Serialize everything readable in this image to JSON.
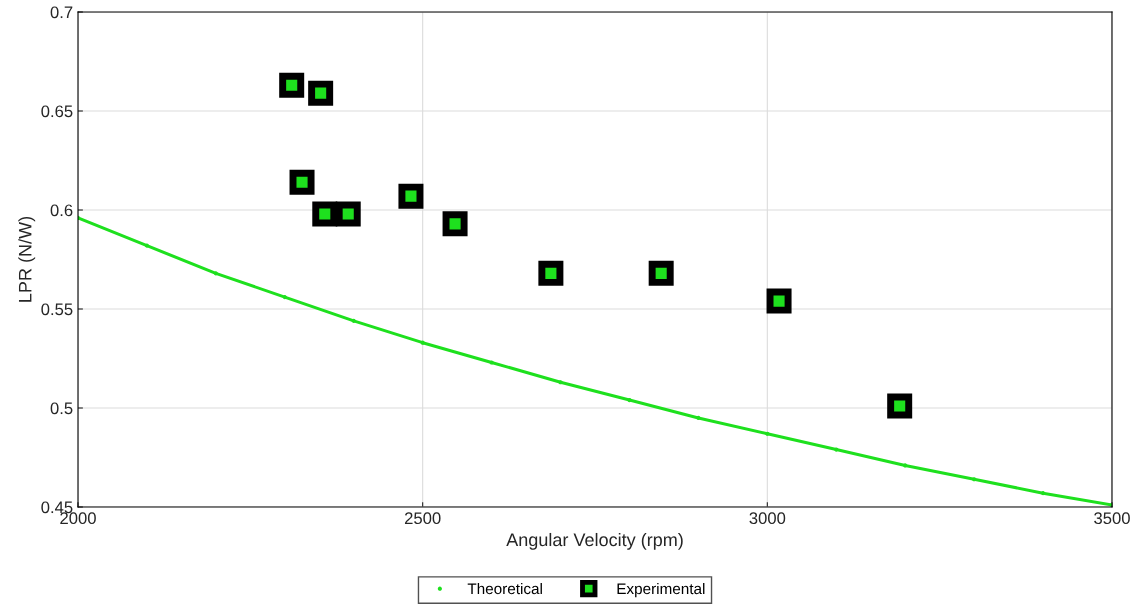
{
  "chart_data": {
    "type": "scatter",
    "xlabel": "Angular Velocity (rpm)",
    "ylabel": "LPR (N/W)",
    "xlim": [
      2000,
      3500
    ],
    "xticks": [
      2000,
      2500,
      3000,
      3500
    ],
    "ylim": [
      0.45,
      0.7
    ],
    "yticks": [
      0.45,
      0.5,
      0.55,
      0.6,
      0.65,
      0.7
    ],
    "grid": true,
    "legend": "bottom",
    "series": [
      {
        "name": "Theoretical",
        "type": "line",
        "color": "#1ee01e",
        "marker": "circle",
        "x": [
          2000,
          2100,
          2200,
          2300,
          2400,
          2500,
          2600,
          2700,
          2800,
          2900,
          3000,
          3100,
          3200,
          3300,
          3400,
          3500
        ],
        "values": [
          0.596,
          0.582,
          0.568,
          0.556,
          0.544,
          0.533,
          0.523,
          0.513,
          0.504,
          0.495,
          0.487,
          0.479,
          0.471,
          0.464,
          0.457,
          0.451
        ]
      },
      {
        "name": "Experimental",
        "color": "#000000",
        "marker": "square",
        "x": [
          2310,
          2352,
          2325,
          2358,
          2392,
          2483,
          2547,
          2686,
          2846,
          3017,
          3192
        ],
        "values": [
          0.663,
          0.659,
          0.614,
          0.598,
          0.598,
          0.607,
          0.593,
          0.568,
          0.568,
          0.554,
          0.501
        ]
      }
    ]
  }
}
